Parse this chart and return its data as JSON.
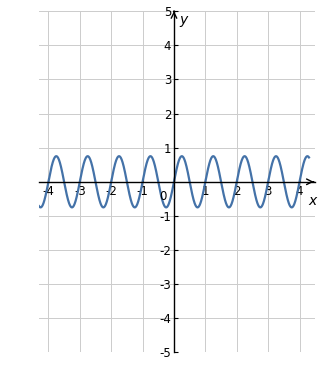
{
  "xlim": [
    -4.3,
    4.5
  ],
  "ylim": [
    -5,
    5
  ],
  "xticks": [
    -4,
    -3,
    -2,
    -1,
    0,
    1,
    2,
    3,
    4
  ],
  "yticks": [
    -5,
    -4,
    -3,
    -2,
    -1,
    1,
    2,
    3,
    4,
    5
  ],
  "xlabel": "x",
  "ylabel": "y",
  "amplitude": 0.75,
  "omega": 2.0,
  "line_color": "#4472a8",
  "line_width": 1.6,
  "grid_color": "#cccccc",
  "background_color": "#ffffff",
  "x_range": [
    -4.3,
    4.3
  ],
  "num_points": 3000,
  "arrow_xlim": 4.45,
  "arrow_ylim": 5.0
}
